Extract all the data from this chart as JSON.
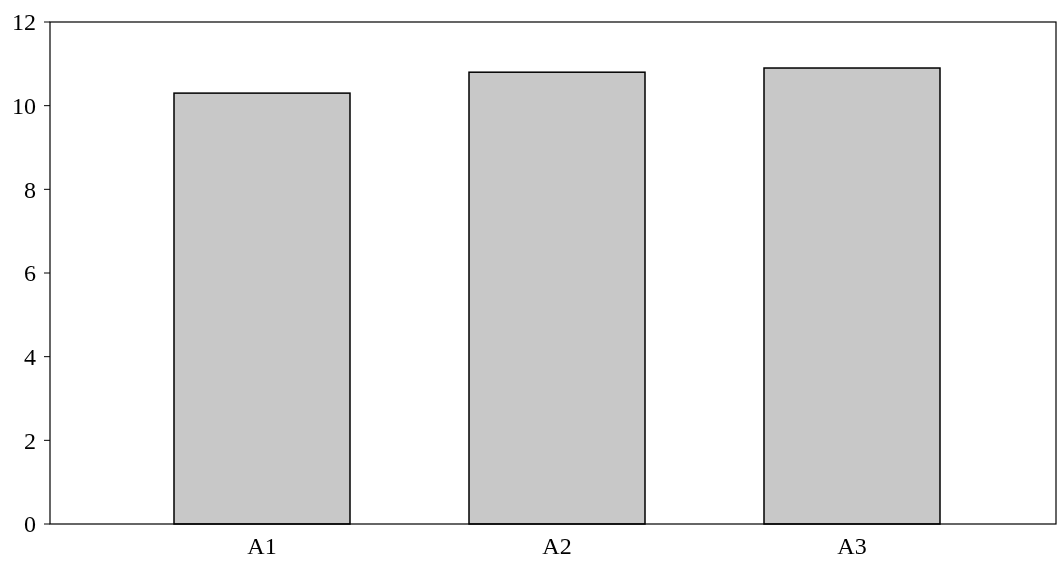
{
  "chart_data": {
    "type": "bar",
    "categories": [
      "A1",
      "A2",
      "A3"
    ],
    "values": [
      10.3,
      10.8,
      10.9
    ],
    "color": "#c8c8c8",
    "ylim": [
      0,
      12
    ],
    "yticks": [
      0,
      2,
      4,
      6,
      8,
      10,
      12
    ]
  }
}
